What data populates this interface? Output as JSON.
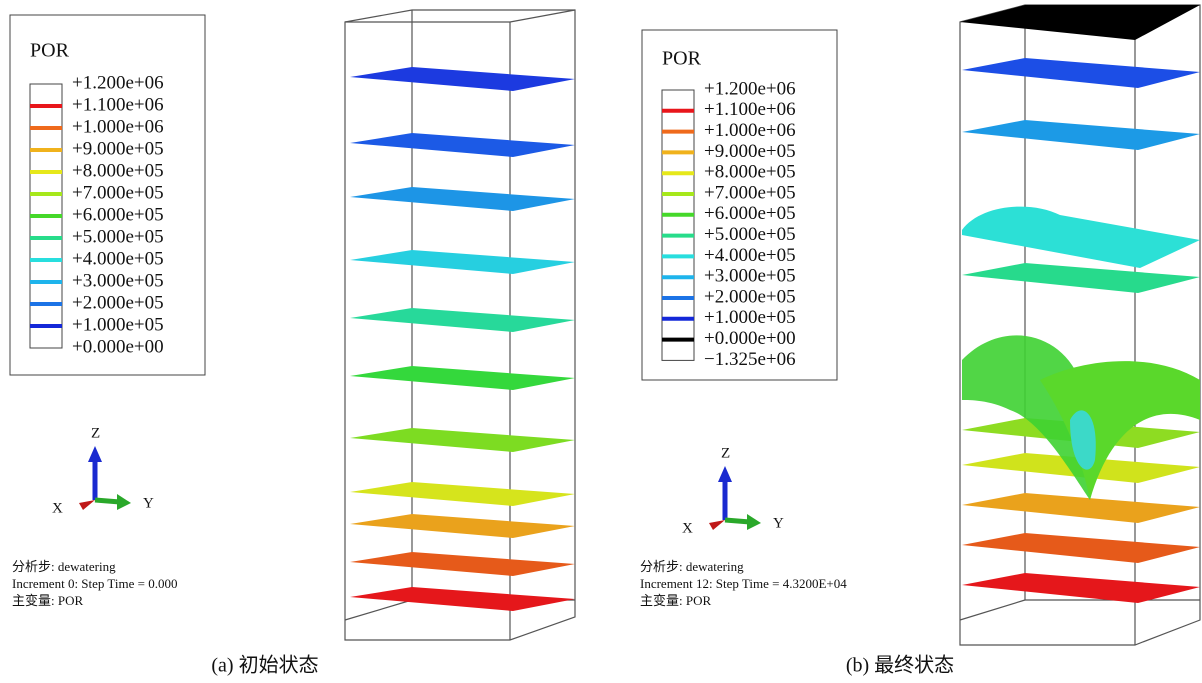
{
  "panels": [
    {
      "legend": {
        "title": "POR",
        "entries": [
          {
            "label": "+1.200e+06"
          },
          {
            "label": "+1.100e+06",
            "color": "#e8161b"
          },
          {
            "label": "+1.000e+06",
            "color": "#ef6a1c"
          },
          {
            "label": "+9.000e+05",
            "color": "#f0b21c"
          },
          {
            "label": "+8.000e+05",
            "color": "#e6e81a"
          },
          {
            "label": "+7.000e+05",
            "color": "#a6e81b"
          },
          {
            "label": "+6.000e+05",
            "color": "#45d82a"
          },
          {
            "label": "+5.000e+05",
            "color": "#27dc8a"
          },
          {
            "label": "+4.000e+05",
            "color": "#28dede"
          },
          {
            "label": "+3.000e+05",
            "color": "#1eb4ec"
          },
          {
            "label": "+2.000e+05",
            "color": "#1c73e6"
          },
          {
            "label": "+1.000e+05",
            "color": "#1428d8"
          },
          {
            "label": "+0.000e+00"
          }
        ]
      },
      "triad": {
        "z": "Z",
        "x": "X",
        "y": "Y"
      },
      "info": [
        "分析步: dewatering",
        "Increment 0: Step Time = 0.000",
        "主变量: POR"
      ],
      "caption": "(a)  初始状态"
    },
    {
      "legend": {
        "title": "POR",
        "entries": [
          {
            "label": "+1.200e+06"
          },
          {
            "label": "+1.100e+06",
            "color": "#e8161b"
          },
          {
            "label": "+1.000e+06",
            "color": "#ef6a1c"
          },
          {
            "label": "+9.000e+05",
            "color": "#f0b21c"
          },
          {
            "label": "+8.000e+05",
            "color": "#e6e81a"
          },
          {
            "label": "+7.000e+05",
            "color": "#a6e81b"
          },
          {
            "label": "+6.000e+05",
            "color": "#45d82a"
          },
          {
            "label": "+5.000e+05",
            "color": "#27dc8a"
          },
          {
            "label": "+4.000e+05",
            "color": "#28dede"
          },
          {
            "label": "+3.000e+05",
            "color": "#1eb4ec"
          },
          {
            "label": "+2.000e+05",
            "color": "#1c73e6"
          },
          {
            "label": "+1.000e+05",
            "color": "#1428d8"
          },
          {
            "label": "+0.000e+00",
            "color": "#000000"
          },
          {
            "label": "−1.325e+06"
          }
        ]
      },
      "triad": {
        "z": "Z",
        "x": "X",
        "y": "Y"
      },
      "info": [
        "分析步: dewatering",
        "Increment 12: Step Time = 4.3200E+04",
        "主变量: POR"
      ],
      "caption": "(b)  最终状态"
    }
  ]
}
